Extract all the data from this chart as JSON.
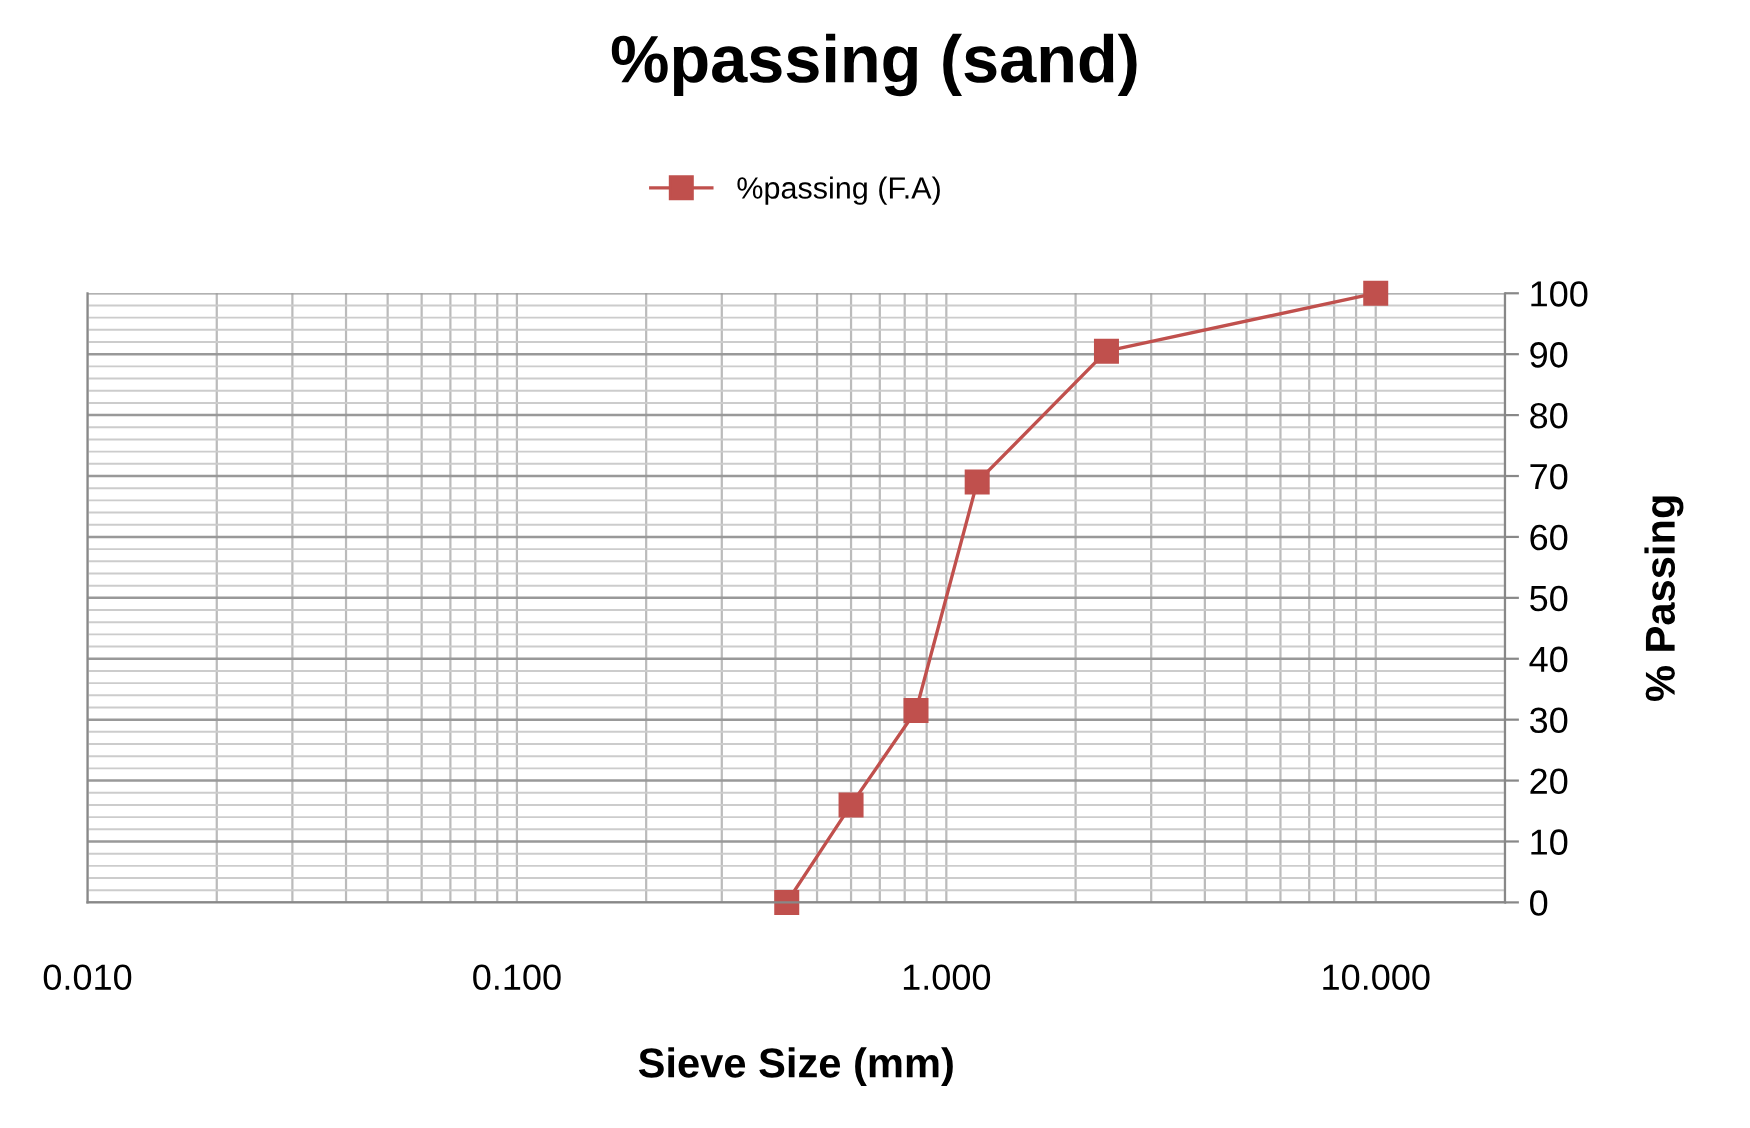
{
  "chart_data": {
    "type": "line",
    "title": "%passing (sand)",
    "xlabel": "Sieve Size (mm)",
    "ylabel": "% Passing",
    "x": [
      0.425,
      0.6,
      0.85,
      1.18,
      2.36,
      10
    ],
    "series": [
      {
        "name": "%passing (F.A)",
        "color": "#c0504d",
        "values": [
          0,
          16,
          31.5,
          69,
          90.5,
          100
        ]
      }
    ],
    "log": "x",
    "xlim": [
      0.01,
      20
    ],
    "xticks": [
      {
        "value": 0.01,
        "label": "0.010"
      },
      {
        "value": 0.1,
        "label": "0.100"
      },
      {
        "value": 1,
        "label": "1.000"
      },
      {
        "value": 10,
        "label": "10.000"
      }
    ],
    "ylim": [
      0,
      100
    ],
    "yticks": [
      0,
      10,
      20,
      30,
      40,
      50,
      60,
      70,
      80,
      90,
      100
    ],
    "grid": true,
    "legend": "top",
    "marker": "square",
    "line_style": "solid"
  }
}
